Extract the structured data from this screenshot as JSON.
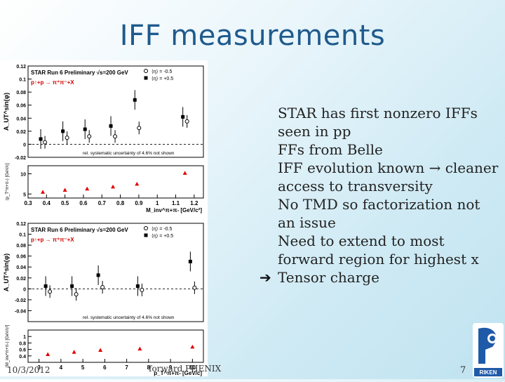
{
  "slide": {
    "title": "IFF measurements",
    "footer_date": "10/3/2012",
    "footer_center": "forward PHENIX",
    "page_number": "7",
    "logo_text": "RIKEN"
  },
  "bullets": [
    {
      "marker": "",
      "text": "STAR has first nonzero IFFs seen in pp",
      "type": "bullet"
    },
    {
      "marker": "",
      "text": "FFs from Belle",
      "type": "bullet"
    },
    {
      "marker": "",
      "text": "IFF evolution known → cleaner access to transversity",
      "type": "bullet"
    },
    {
      "marker": "",
      "text": "No TMD so factorization not an issue",
      "type": "bullet"
    },
    {
      "marker": "",
      "text": "Need to extend to most forward region for highest x",
      "type": "bullet"
    },
    {
      "marker": "➔",
      "text": "Tensor charge",
      "type": "arrow"
    }
  ],
  "chart_data": [
    {
      "type": "scatter",
      "header": "STAR Run 6 Preliminary √s=200 GeV",
      "process": "p↑+p → π⁺π⁻+X",
      "note": "rel. systematic uncertainty of 4.6% not shown",
      "ylabel": "A_UT^sin(φ)",
      "xlabel": "M_inv^π+π- [GeV/c²]",
      "sublabel": "⟨p_T^π+π-⟩ [GeV/c]",
      "xlim": [
        0.3,
        1.25
      ],
      "ylim": [
        -0.02,
        0.12
      ],
      "xticks": [
        "0.3",
        "0.4",
        "0.5",
        "0.6",
        "0.7",
        "0.8",
        "0.9",
        "1",
        "1.1",
        "1.2"
      ],
      "yticks": [
        "-0.02",
        "0",
        "0.02",
        "0.04",
        "0.06",
        "0.08",
        "0.1",
        "0.12"
      ],
      "legend": [
        "⟨η⟩ = -0.5",
        "⟨η⟩ = +0.5"
      ],
      "series": [
        {
          "name": "⟨η⟩ = -0.5",
          "marker": "open",
          "x": [
            0.38,
            0.5,
            0.62,
            0.76,
            0.89,
            1.15
          ],
          "y": [
            0.003,
            0.01,
            0.012,
            0.012,
            0.025,
            0.035
          ]
        },
        {
          "name": "⟨η⟩ = +0.5",
          "marker": "filled",
          "x": [
            0.38,
            0.5,
            0.62,
            0.76,
            0.89,
            1.15
          ],
          "y": [
            0.008,
            0.02,
            0.023,
            0.028,
            0.068,
            0.042
          ]
        }
      ],
      "sub_ylim": [
        4,
        12
      ],
      "sub_yticks": [
        "5",
        "10"
      ],
      "pt_values": {
        "x": [
          0.38,
          0.5,
          0.62,
          0.76,
          0.89,
          1.15
        ],
        "y": [
          5.5,
          6.0,
          6.3,
          6.8,
          7.5,
          10.2
        ]
      }
    },
    {
      "type": "scatter",
      "header": "STAR Run 6 Preliminary √s=200 GeV",
      "process": "p↑+p → π⁺π⁻+X",
      "note": "rel. systematic uncertainty of 4.6% not shown",
      "ylabel": "A_UT^sin(φ)",
      "xlabel": "p_T^π+π- [GeV/c]",
      "sublabel": "⟨M_inv^π+π-⟩ [GeV/c²]",
      "xlim": [
        2.5,
        10.5
      ],
      "ylim": [
        -0.06,
        0.12
      ],
      "xticks": [
        "3",
        "4",
        "5",
        "6",
        "7",
        "8",
        "9",
        "10"
      ],
      "yticks": [
        "-0.04",
        "-0.02",
        "0",
        "0.02",
        "0.04",
        "0.06",
        "0.08",
        "0.1",
        "0.12"
      ],
      "legend": [
        "⟨η⟩ = -0.5",
        "⟨η⟩ = +0.5"
      ],
      "series": [
        {
          "name": "⟨η⟩ = -0.5",
          "marker": "open",
          "x": [
            3.4,
            4.6,
            5.8,
            7.6,
            10.0
          ],
          "y": [
            -0.005,
            -0.01,
            0.003,
            -0.002,
            0.002
          ]
        },
        {
          "name": "⟨η⟩ = +0.5",
          "marker": "filled",
          "x": [
            3.4,
            4.6,
            5.8,
            7.6,
            10.0
          ],
          "y": [
            0.005,
            0.005,
            0.025,
            0.005,
            0.05
          ]
        }
      ],
      "sub_ylim": [
        0.2,
        1.2
      ],
      "sub_yticks": [
        "0.4",
        "0.6",
        "0.8",
        "1"
      ],
      "minv_values": {
        "x": [
          3.4,
          4.6,
          5.8,
          7.6,
          10.0
        ],
        "y": [
          0.45,
          0.52,
          0.58,
          0.62,
          0.68
        ]
      }
    }
  ]
}
